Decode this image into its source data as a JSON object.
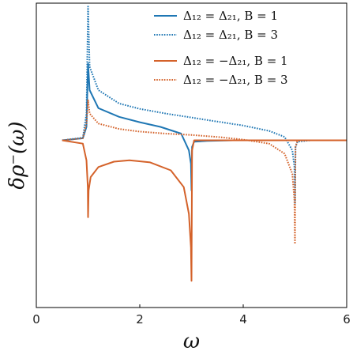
{
  "chart_data": {
    "type": "line",
    "title": "",
    "xlabel": "ω",
    "ylabel": "δρ⁻(ω)",
    "xlim": [
      0,
      6
    ],
    "ylim": [
      -2.5,
      2.05
    ],
    "x_ticks": [
      0,
      2,
      4,
      6
    ],
    "x_tick_labels": [
      "0",
      "2",
      "4",
      "6"
    ],
    "y_ticks_labeled": false,
    "grid": false,
    "legend_position": "top-right",
    "series": [
      {
        "name": "Δ₁₂ = Δ₂₁, B = 1",
        "color": "#1f77b4",
        "dash": "solid",
        "x": [
          0.5,
          0.9,
          0.97,
          1.0,
          1.03,
          1.2,
          1.6,
          2.0,
          2.4,
          2.8,
          2.95,
          2.99,
          3.0,
          3.01,
          3.05,
          3.3,
          3.8,
          4.5,
          5.5,
          6.0
        ],
        "y": [
          0.0,
          0.03,
          0.2,
          1.15,
          0.75,
          0.48,
          0.35,
          0.27,
          0.2,
          0.1,
          -0.15,
          -0.35,
          -0.75,
          -0.1,
          -0.02,
          -0.01,
          0.0,
          0.0,
          0.0,
          0.0
        ]
      },
      {
        "name": "Δ₁₂ = Δ₂₁, B = 3",
        "color": "#1f77b4",
        "dash": "dotted",
        "x": [
          0.5,
          0.9,
          0.97,
          1.0,
          1.03,
          1.2,
          1.6,
          2.0,
          2.5,
          3.0,
          3.5,
          4.0,
          4.5,
          4.8,
          4.95,
          4.99,
          5.0,
          5.01,
          5.05,
          5.3,
          6.0
        ],
        "y": [
          0.0,
          0.04,
          0.4,
          2.0,
          1.1,
          0.75,
          0.55,
          0.47,
          0.4,
          0.34,
          0.28,
          0.22,
          0.14,
          0.05,
          -0.15,
          -0.4,
          -0.95,
          -0.1,
          -0.02,
          0.0,
          0.0
        ]
      },
      {
        "name": "Δ₁₂ = −Δ₂₁, B = 1",
        "color": "#d4622a",
        "dash": "solid",
        "x": [
          0.5,
          0.9,
          0.97,
          0.995,
          1.0,
          1.01,
          1.05,
          1.2,
          1.5,
          1.8,
          2.2,
          2.6,
          2.85,
          2.95,
          2.99,
          3.0,
          3.01,
          3.05,
          3.3,
          4.0,
          6.0
        ],
        "y": [
          0.0,
          -0.05,
          -0.3,
          -0.7,
          -1.15,
          -0.75,
          -0.55,
          -0.4,
          -0.32,
          -0.3,
          -0.33,
          -0.45,
          -0.7,
          -1.1,
          -1.6,
          -2.1,
          -0.15,
          0.0,
          0.0,
          0.0,
          0.0
        ]
      },
      {
        "name": "Δ₁₂ = −Δ₂₁, B = 3",
        "color": "#d4622a",
        "dash": "dotted",
        "x": [
          0.5,
          0.9,
          0.97,
          1.0,
          1.03,
          1.2,
          1.6,
          2.0,
          2.5,
          3.0,
          3.5,
          4.0,
          4.5,
          4.8,
          4.95,
          4.99,
          5.0,
          5.01,
          5.05,
          6.0
        ],
        "y": [
          0.0,
          0.03,
          0.25,
          0.6,
          0.4,
          0.25,
          0.17,
          0.13,
          0.1,
          0.08,
          0.05,
          0.01,
          -0.05,
          -0.2,
          -0.5,
          -0.9,
          -1.55,
          -0.1,
          0.0,
          0.0
        ]
      }
    ]
  }
}
